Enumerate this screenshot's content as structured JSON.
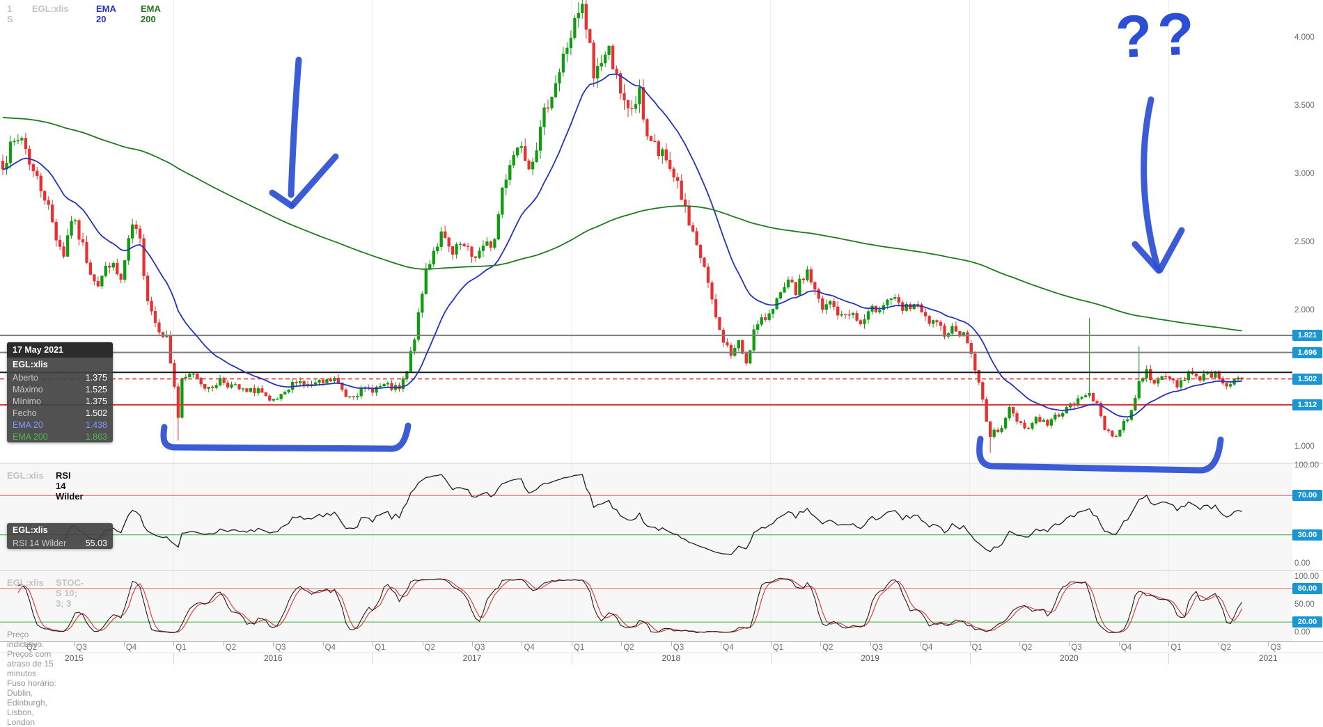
{
  "header": {
    "timeframe": "1 S",
    "symbol": "EGL:xlis",
    "ema20_label": "EMA 20",
    "ema200_label": "EMA 200"
  },
  "colors": {
    "candle_up": "#0f9d0f",
    "candle_down": "#e93030",
    "ema20": "#2233bb",
    "ema200": "#1f7a1f",
    "tag_blue": "#1a96d5",
    "annotation_blue": "#2b4ed4",
    "level_gray": "#7e7e7e",
    "level_black": "#1b1b1b",
    "level_red": "#e03030",
    "rsi_line": "#1d1d1d",
    "stoch_k": "#1d1d1d",
    "stoch_d": "#e03030",
    "guide_red": "#e06060",
    "guide_green": "#3cb043"
  },
  "tooltip_price": {
    "date": "17 May 2021",
    "symbol": "EGL:xlis",
    "rows": [
      {
        "label": "Aberto",
        "value": "1.375"
      },
      {
        "label": "Máximo",
        "value": "1.525"
      },
      {
        "label": "Mínimo",
        "value": "1.375"
      },
      {
        "label": "Fecho",
        "value": "1.502"
      }
    ],
    "ema20_label": "EMA 20",
    "ema20_value": "1.438",
    "ema200_label": "EMA 200",
    "ema200_value": "1.863"
  },
  "panels": {
    "rsi": {
      "symbol": "EGL:xlis",
      "title": "RSI 14 Wilder",
      "tooltip_symbol": "EGL:xlis",
      "tooltip_label": "RSI 14 Wilder",
      "tooltip_value": "55.03"
    },
    "stoch": {
      "symbol": "EGL:xlis",
      "title": "STOC-S 10; 3; 3"
    }
  },
  "footer": {
    "disclaimer": "Preço indicativo. Preços com atraso de 15 minutos",
    "timezone": "Fuso horário: Dublin, Edinburgh, Lisbon, London"
  },
  "axis": {
    "quarters": [
      "Q1",
      "Q2",
      "Q3",
      "Q4"
    ],
    "years": [
      2015,
      2016,
      2017,
      2018,
      2019,
      2020,
      2021
    ],
    "last_visible": {
      "year": 2021,
      "quarter": 3
    },
    "price_ticks": [
      "4.000",
      "3.500",
      "3.000",
      "2.500",
      "2.000",
      "1.000"
    ],
    "price_tags": [
      "1.821",
      "1.696",
      "1.502",
      "1.312"
    ],
    "rsi_ticks": [
      "100.00",
      "0.00"
    ],
    "rsi_tags": [
      "70.00",
      "30.00"
    ],
    "stoch_ticks": [
      "100.00",
      "50.00",
      "0.00"
    ],
    "stoch_tags": [
      "80.00",
      "20.00"
    ]
  },
  "annotations": {
    "question_marks": "??"
  },
  "chart_data": {
    "type": "candlestick",
    "title": "EGL:xlis weekly candles with EMA 20 / EMA 200 overlays, RSI 14 Wilder and Slow Stochastic 10;3;3 panels",
    "x_range_years": [
      2015.12,
      2021.38
    ],
    "price_ylim": [
      0.9,
      4.4
    ],
    "levels": {
      "gray": [
        1.821,
        1.696
      ],
      "black": [
        1.55
      ],
      "red_dashed": [
        1.502
      ],
      "red_solid": [
        1.312
      ]
    },
    "price": {
      "weeks": 326,
      "seed": 7,
      "noise_amp": 0.02,
      "wick_amp": 0.02,
      "last_close": 1.502,
      "ema20_span": 20,
      "ema200_span": 200,
      "ema200_seed": 3.42,
      "anchors": [
        [
          0,
          3.1
        ],
        [
          3,
          3.22
        ],
        [
          5,
          3.28
        ],
        [
          8,
          3.02
        ],
        [
          11,
          2.85
        ],
        [
          14,
          2.55
        ],
        [
          16,
          2.42
        ],
        [
          18,
          2.68
        ],
        [
          20,
          2.55
        ],
        [
          23,
          2.3
        ],
        [
          25,
          2.2
        ],
        [
          28,
          2.36
        ],
        [
          31,
          2.22
        ],
        [
          34,
          2.62
        ],
        [
          36,
          2.5
        ],
        [
          38,
          2.1
        ],
        [
          40,
          1.92
        ],
        [
          43,
          1.8
        ],
        [
          45,
          1.45
        ],
        [
          46,
          1.22
        ],
        [
          47,
          1.48
        ],
        [
          50,
          1.55
        ],
        [
          54,
          1.42
        ],
        [
          57,
          1.5
        ],
        [
          60,
          1.45
        ],
        [
          64,
          1.4
        ],
        [
          67,
          1.43
        ],
        [
          70,
          1.32
        ],
        [
          74,
          1.38
        ],
        [
          77,
          1.5
        ],
        [
          80,
          1.45
        ],
        [
          84,
          1.47
        ],
        [
          87,
          1.5
        ],
        [
          90,
          1.38
        ],
        [
          94,
          1.41
        ],
        [
          97,
          1.43
        ],
        [
          100,
          1.45
        ],
        [
          104,
          1.42
        ],
        [
          106,
          1.55
        ],
        [
          109,
          1.95
        ],
        [
          111,
          2.3
        ],
        [
          113,
          2.45
        ],
        [
          115,
          2.55
        ],
        [
          118,
          2.4
        ],
        [
          120,
          2.48
        ],
        [
          123,
          2.4
        ],
        [
          126,
          2.45
        ],
        [
          129,
          2.52
        ],
        [
          131,
          2.9
        ],
        [
          133,
          3.1
        ],
        [
          136,
          3.25
        ],
        [
          138,
          3.08
        ],
        [
          141,
          3.3
        ],
        [
          143,
          3.55
        ],
        [
          146,
          3.75
        ],
        [
          148,
          3.95
        ],
        [
          150,
          4.1
        ],
        [
          152,
          4.2
        ],
        [
          154,
          3.92
        ],
        [
          155,
          3.72
        ],
        [
          157,
          3.85
        ],
        [
          159,
          3.9
        ],
        [
          161,
          3.78
        ],
        [
          162,
          3.55
        ],
        [
          164,
          3.45
        ],
        [
          167,
          3.58
        ],
        [
          169,
          3.3
        ],
        [
          172,
          3.15
        ],
        [
          174,
          3.1
        ],
        [
          177,
          2.95
        ],
        [
          180,
          2.62
        ],
        [
          182,
          2.45
        ],
        [
          184,
          2.33
        ],
        [
          186,
          2.05
        ],
        [
          188,
          1.85
        ],
        [
          191,
          1.68
        ],
        [
          193,
          1.76
        ],
        [
          195,
          1.63
        ],
        [
          197,
          1.85
        ],
        [
          200,
          1.95
        ],
        [
          202,
          2.05
        ],
        [
          204,
          2.1
        ],
        [
          206,
          2.2
        ],
        [
          208,
          2.14
        ],
        [
          211,
          2.3
        ],
        [
          213,
          2.14
        ],
        [
          215,
          2.0
        ],
        [
          217,
          2.06
        ],
        [
          220,
          1.95
        ],
        [
          222,
          2.0
        ],
        [
          225,
          1.9
        ],
        [
          228,
          2.0
        ],
        [
          231,
          2.06
        ],
        [
          233,
          2.1
        ],
        [
          236,
          2.0
        ],
        [
          239,
          2.05
        ],
        [
          242,
          1.94
        ],
        [
          244,
          1.9
        ],
        [
          247,
          1.85
        ],
        [
          250,
          1.88
        ],
        [
          253,
          1.78
        ],
        [
          255,
          1.58
        ],
        [
          257,
          1.34
        ],
        [
          259,
          1.08
        ],
        [
          262,
          1.16
        ],
        [
          264,
          1.28
        ],
        [
          266,
          1.2
        ],
        [
          269,
          1.14
        ],
        [
          271,
          1.22
        ],
        [
          274,
          1.17
        ],
        [
          277,
          1.25
        ],
        [
          280,
          1.3
        ],
        [
          283,
          1.36
        ],
        [
          285,
          1.42
        ],
        [
          287,
          1.3
        ],
        [
          289,
          1.14
        ],
        [
          292,
          1.08
        ],
        [
          294,
          1.18
        ],
        [
          296,
          1.26
        ],
        [
          298,
          1.5
        ],
        [
          300,
          1.55
        ],
        [
          303,
          1.47
        ],
        [
          305,
          1.52
        ],
        [
          308,
          1.46
        ],
        [
          311,
          1.55
        ],
        [
          313,
          1.5
        ],
        [
          316,
          1.55
        ],
        [
          319,
          1.52
        ],
        [
          321,
          1.46
        ],
        [
          325,
          1.502
        ]
      ],
      "wick_overrides": [
        {
          "week": 46,
          "low": 1.05
        },
        {
          "week": 259,
          "low": 0.96
        },
        {
          "week": 152,
          "high": 4.23
        },
        {
          "week": 285,
          "high": 1.95
        },
        {
          "week": 298,
          "high": 1.74
        }
      ]
    },
    "rsi": {
      "period": 14,
      "overbought": 70,
      "oversold": 30,
      "last": 55.03
    },
    "stoch": {
      "k": 10,
      "slow": 3,
      "d": 3,
      "upper": 80,
      "lower": 20
    }
  }
}
